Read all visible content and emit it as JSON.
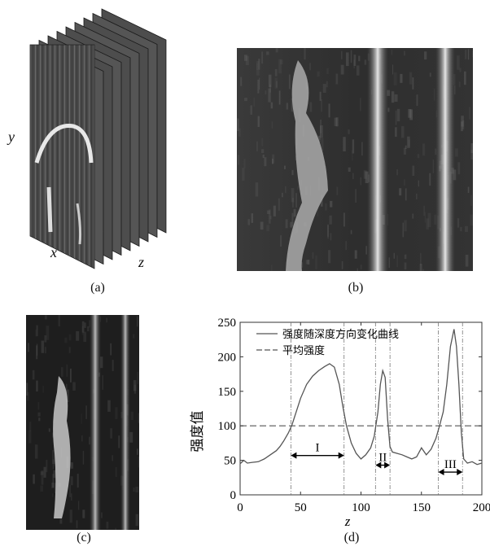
{
  "figure": {
    "panel_a": {
      "caption": "(a)",
      "axis_y": "y",
      "axis_x": "x",
      "axis_z": "z"
    },
    "panel_b": {
      "caption": "(b)"
    },
    "panel_c": {
      "caption": "(c)"
    },
    "panel_d": {
      "caption": "(d)"
    }
  },
  "chart_data": {
    "type": "line",
    "title": "",
    "xlabel": "z",
    "ylabel": "强度值",
    "xlim": [
      0,
      200
    ],
    "ylim": [
      0,
      250
    ],
    "xticks": [
      "0",
      "50",
      "100",
      "150",
      "200"
    ],
    "yticks": [
      "0",
      "50",
      "100",
      "150",
      "200",
      "250"
    ],
    "grid": false,
    "legend_position": "top-left",
    "series": [
      {
        "name": "强度随深度方向变化曲线",
        "style": "solid",
        "color": "#555555",
        "x": [
          0,
          3,
          6,
          10,
          15,
          20,
          25,
          30,
          33,
          36,
          40,
          43,
          46,
          50,
          55,
          60,
          65,
          70,
          74,
          78,
          82,
          85,
          88,
          92,
          96,
          100,
          104,
          108,
          111,
          114,
          116,
          118,
          120,
          122,
          124,
          126,
          130,
          134,
          138,
          142,
          146,
          150,
          154,
          158,
          162,
          165,
          168,
          171,
          174,
          177,
          179,
          181,
          183,
          185,
          188,
          192,
          196,
          200
        ],
        "y": [
          45,
          50,
          46,
          47,
          48,
          52,
          58,
          64,
          70,
          78,
          90,
          102,
          118,
          140,
          160,
          172,
          180,
          186,
          190,
          185,
          160,
          128,
          100,
          75,
          60,
          52,
          58,
          68,
          85,
          120,
          160,
          180,
          170,
          110,
          70,
          62,
          60,
          58,
          55,
          52,
          55,
          68,
          58,
          66,
          82,
          100,
          120,
          160,
          215,
          240,
          215,
          160,
          90,
          52,
          46,
          48,
          44,
          46
        ]
      },
      {
        "name": "平均强度",
        "style": "dashed",
        "color": "#555555",
        "x": [
          0,
          200
        ],
        "y": [
          100,
          100
        ]
      }
    ],
    "vertical_lines": [
      42,
      86,
      112,
      124,
      164,
      184
    ],
    "regions": [
      {
        "label": "I",
        "x_start": 42,
        "x_end": 86,
        "y": 57
      },
      {
        "label": "II",
        "x_start": 112,
        "x_end": 124,
        "y": 43
      },
      {
        "label": "III",
        "x_start": 164,
        "x_end": 184,
        "y": 33
      }
    ]
  }
}
